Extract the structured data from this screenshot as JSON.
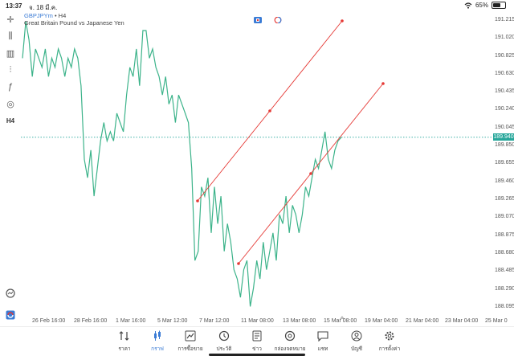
{
  "status": {
    "time": "13:37",
    "date": "จ. 18 มี.ค.",
    "battery": "65%",
    "battery_level": 0.65
  },
  "chart": {
    "symbol": "GBPJPYm",
    "timeframe": "• H4",
    "description": "Great Britain Pound vs Japanese Yen",
    "current_price": "189.940"
  },
  "chart_data": {
    "type": "line",
    "title": "",
    "ylim": [
      187.99,
      191.31
    ],
    "y_ticks": [
      "191.215",
      "191.020",
      "190.825",
      "190.630",
      "190.435",
      "190.240",
      "190.045",
      "189.850",
      "189.655",
      "189.460",
      "189.265",
      "189.070",
      "188.875",
      "188.680",
      "188.485",
      "188.290",
      "188.095"
    ],
    "x_ticks": [
      "26 Feb 16:00",
      "28 Feb 16:00",
      "1 Mar 16:00",
      "5 Mar 12:00",
      "7 Mar 12:00",
      "11 Mar 08:00",
      "13 Mar 08:00",
      "15 Mar 08:00",
      "19 Mar 04:00",
      "21 Mar 04:00",
      "23 Mar 04:00",
      "25 Mar 0"
    ],
    "series": [
      {
        "values": [
          190.8,
          191.2,
          191.0,
          190.6,
          190.9,
          190.8,
          190.7,
          190.9,
          190.6,
          190.8,
          190.7,
          190.9,
          190.8,
          190.6,
          190.8,
          190.7,
          190.9,
          190.8,
          190.5,
          189.7,
          189.5,
          189.8,
          189.3,
          189.6,
          189.9,
          190.1,
          189.9,
          190.0,
          189.9,
          190.2,
          190.1,
          190.0,
          190.4,
          190.7,
          190.6,
          190.9,
          190.5,
          191.1,
          191.1,
          190.8,
          190.9,
          190.7,
          190.6,
          190.4,
          190.6,
          190.3,
          190.4,
          190.1,
          190.4,
          190.3,
          190.2,
          190.1,
          189.6,
          188.6,
          188.7,
          189.4,
          189.3,
          189.5,
          188.9,
          189.4,
          189.0,
          189.3,
          188.7,
          189.0,
          188.8,
          188.5,
          188.4,
          188.2,
          188.5,
          188.6,
          188.1,
          188.3,
          188.6,
          188.4,
          188.8,
          188.5,
          188.7,
          188.9,
          188.6,
          189.1,
          189.0,
          189.3,
          188.9,
          189.2,
          189.1,
          188.9,
          189.1,
          189.4,
          189.3,
          189.5,
          189.7,
          189.6,
          189.8,
          190.0,
          189.7,
          189.6,
          189.8,
          189.9,
          189.94
        ]
      }
    ]
  },
  "yaxis_labels": [
    "191.215",
    "191.020",
    "190.825",
    "190.630",
    "190.435",
    "190.240",
    "190.045",
    "189.850",
    "189.655",
    "189.460",
    "189.265",
    "189.070",
    "188.875",
    "188.680",
    "188.485",
    "188.290",
    "188.095"
  ],
  "xaxis_labels": [
    "26 Feb 16:00",
    "28 Feb 16:00",
    "1 Mar 16:00",
    "5 Mar 12:00",
    "7 Mar 12:00",
    "11 Mar 08:00",
    "13 Mar 08:00",
    "15 Mar 08:00",
    "19 Mar 04:00",
    "21 Mar 04:00",
    "23 Mar 04:00",
    "25 Mar 0"
  ],
  "left_tools": [
    {
      "name": "crosshair-icon",
      "glyph": "✛"
    },
    {
      "name": "candlestick-icon",
      "glyph": "⫼"
    },
    {
      "name": "bar-chart-icon",
      "glyph": "▥"
    },
    {
      "name": "indicators-icon",
      "glyph": "⫶"
    },
    {
      "name": "function-icon",
      "glyph": "ƒ"
    },
    {
      "name": "objects-icon",
      "glyph": "◎"
    },
    {
      "name": "timeframe-h4",
      "glyph": "H4"
    }
  ],
  "tabs": [
    {
      "label": "ราคา",
      "icon": "quotes-icon"
    },
    {
      "label": "กราฟ",
      "icon": "chart-icon",
      "active": true
    },
    {
      "label": "การซื้อขาย",
      "icon": "trade-icon"
    },
    {
      "label": "ประวัติ",
      "icon": "history-icon"
    },
    {
      "label": "ข่าว",
      "icon": "news-icon"
    },
    {
      "label": "กล่องจดหมาย",
      "icon": "mailbox-icon"
    },
    {
      "label": "แชท",
      "icon": "chat-icon"
    },
    {
      "label": "บัญชี",
      "icon": "account-icon"
    },
    {
      "label": "การตั้งค่า",
      "icon": "settings-icon"
    }
  ],
  "colors": {
    "line": "#3cb38a",
    "trend": "#e53935",
    "accent": "#3a7bd5",
    "price_tag": "#26a69a"
  }
}
